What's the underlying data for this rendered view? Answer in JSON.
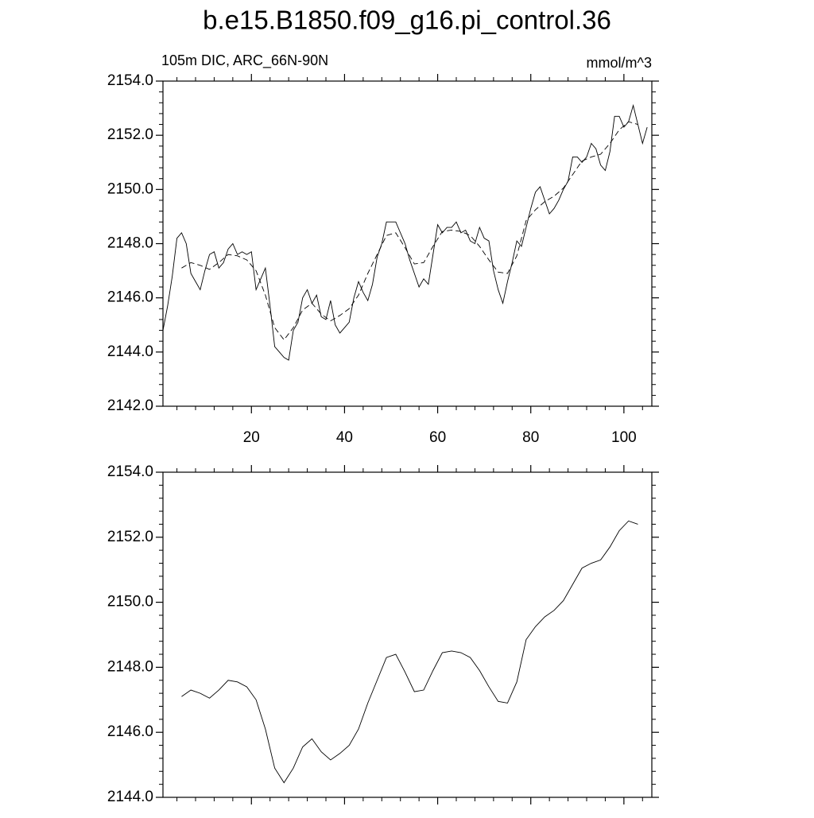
{
  "chart_data": [
    {
      "type": "line",
      "title": "b.e15.B1850.f09_g16.pi_control.36",
      "subtitle": "105m DIC, ARC_66N-90N",
      "units": "mmol/m^3",
      "xlim": [
        1,
        106
      ],
      "xticks": [
        20,
        40,
        60,
        80,
        100
      ],
      "ylim": [
        2142,
        2154
      ],
      "yticks": [
        {
          "value": 2142,
          "label": "2142.0"
        },
        {
          "value": 2144,
          "label": "2144.0"
        },
        {
          "value": 2146,
          "label": "2146.0"
        },
        {
          "value": 2148,
          "label": "2148.0"
        },
        {
          "value": 2150,
          "label": "2150.0"
        },
        {
          "value": 2152,
          "label": "2152.0"
        },
        {
          "value": 2154,
          "label": "2154.0"
        }
      ],
      "series": [
        {
          "color": "#000000",
          "dash": false,
          "x": [
            1,
            2,
            3,
            4,
            5,
            6,
            7,
            8,
            9,
            10,
            11,
            12,
            13,
            14,
            15,
            16,
            17,
            18,
            19,
            20,
            21,
            22,
            23,
            24,
            25,
            26,
            27,
            28,
            29,
            30,
            31,
            32,
            33,
            34,
            35,
            36,
            37,
            38,
            39,
            40,
            41,
            42,
            43,
            44,
            45,
            46,
            47,
            48,
            49,
            50,
            51,
            52,
            53,
            54,
            55,
            56,
            57,
            58,
            59,
            60,
            61,
            62,
            63,
            64,
            65,
            66,
            67,
            68,
            69,
            70,
            71,
            72,
            73,
            74,
            75,
            76,
            77,
            78,
            79,
            80,
            81,
            82,
            83,
            84,
            85,
            86,
            87,
            88,
            89,
            90,
            91,
            92,
            93,
            94,
            95,
            96,
            97,
            98,
            99,
            100,
            101,
            102,
            103,
            104,
            105
          ],
          "values": [
            2144.8,
            2145.7,
            2146.8,
            2148.2,
            2148.4,
            2148.0,
            2146.9,
            2146.6,
            2146.3,
            2147.0,
            2147.6,
            2147.7,
            2147.1,
            2147.3,
            2147.8,
            2148.0,
            2147.6,
            2147.7,
            2147.6,
            2147.7,
            2146.3,
            2146.7,
            2147.1,
            2145.7,
            2144.2,
            2144.0,
            2143.8,
            2143.7,
            2144.8,
            2145.1,
            2146.0,
            2146.3,
            2145.8,
            2146.1,
            2145.3,
            2145.2,
            2145.9,
            2145.0,
            2144.7,
            2144.9,
            2145.1,
            2146.0,
            2146.6,
            2146.2,
            2145.9,
            2146.5,
            2147.5,
            2148.0,
            2148.8,
            2148.8,
            2148.8,
            2148.4,
            2148.0,
            2147.4,
            2146.9,
            2146.4,
            2146.7,
            2146.5,
            2147.6,
            2148.7,
            2148.4,
            2148.6,
            2148.6,
            2148.8,
            2148.4,
            2148.5,
            2148.1,
            2148.0,
            2148.6,
            2148.2,
            2148.1,
            2147.0,
            2146.3,
            2145.8,
            2146.6,
            2147.3,
            2148.1,
            2147.9,
            2148.6,
            2149.3,
            2149.9,
            2150.1,
            2149.6,
            2149.1,
            2149.3,
            2149.6,
            2150.0,
            2150.3,
            2151.2,
            2151.2,
            2151.0,
            2151.2,
            2151.7,
            2151.5,
            2150.9,
            2150.7,
            2151.4,
            2152.7,
            2152.7,
            2152.3,
            2152.5,
            2153.1,
            2152.4,
            2151.7,
            2152.3
          ]
        },
        {
          "color": "#000000",
          "dash": true,
          "x": [
            5,
            7,
            9,
            11,
            13,
            15,
            17,
            19,
            21,
            23,
            25,
            27,
            29,
            31,
            33,
            35,
            37,
            39,
            41,
            43,
            45,
            47,
            49,
            51,
            53,
            55,
            57,
            59,
            61,
            63,
            65,
            67,
            69,
            71,
            73,
            75,
            77,
            79,
            81,
            83,
            85,
            87,
            89,
            91,
            93,
            95,
            97,
            99,
            101,
            103
          ],
          "values": [
            2147.1,
            2147.3,
            2147.2,
            2147.05,
            2147.3,
            2147.6,
            2147.55,
            2147.4,
            2147.0,
            2146.1,
            2144.9,
            2144.45,
            2144.9,
            2145.55,
            2145.8,
            2145.4,
            2145.15,
            2145.35,
            2145.6,
            2146.1,
            2146.9,
            2147.6,
            2148.3,
            2148.4,
            2147.85,
            2147.25,
            2147.3,
            2147.9,
            2148.45,
            2148.5,
            2148.45,
            2148.3,
            2147.9,
            2147.4,
            2146.95,
            2146.9,
            2147.55,
            2148.85,
            2149.25,
            2149.55,
            2149.75,
            2150.05,
            2150.55,
            2151.05,
            2151.2,
            2151.3,
            2151.7,
            2152.2,
            2152.5,
            2152.4
          ]
        }
      ]
    },
    {
      "type": "line",
      "xlim": [
        1,
        106
      ],
      "xticks": [
        20,
        40,
        60,
        80,
        100
      ],
      "ylim": [
        2144,
        2154
      ],
      "yticks": [
        {
          "value": 2144,
          "label": "2144.0"
        },
        {
          "value": 2146,
          "label": "2146.0"
        },
        {
          "value": 2148,
          "label": "2148.0"
        },
        {
          "value": 2150,
          "label": "2150.0"
        },
        {
          "value": 2152,
          "label": "2152.0"
        },
        {
          "value": 2154,
          "label": "2154.0"
        }
      ],
      "series": [
        {
          "color": "#000000",
          "dash": false,
          "x": [
            5,
            7,
            9,
            11,
            13,
            15,
            17,
            19,
            21,
            23,
            25,
            27,
            29,
            31,
            33,
            35,
            37,
            39,
            41,
            43,
            45,
            47,
            49,
            51,
            53,
            55,
            57,
            59,
            61,
            63,
            65,
            67,
            69,
            71,
            73,
            75,
            77,
            79,
            81,
            83,
            85,
            87,
            89,
            91,
            93,
            95,
            97,
            99,
            101,
            103
          ],
          "values": [
            2147.1,
            2147.3,
            2147.2,
            2147.05,
            2147.3,
            2147.6,
            2147.55,
            2147.4,
            2147.0,
            2146.1,
            2144.9,
            2144.45,
            2144.9,
            2145.55,
            2145.8,
            2145.4,
            2145.15,
            2145.35,
            2145.6,
            2146.1,
            2146.9,
            2147.6,
            2148.3,
            2148.4,
            2147.85,
            2147.25,
            2147.3,
            2147.9,
            2148.45,
            2148.5,
            2148.45,
            2148.3,
            2147.9,
            2147.4,
            2146.95,
            2146.9,
            2147.55,
            2148.85,
            2149.25,
            2149.55,
            2149.75,
            2150.05,
            2150.55,
            2151.05,
            2151.2,
            2151.3,
            2151.7,
            2152.2,
            2152.5,
            2152.4
          ]
        }
      ]
    }
  ]
}
